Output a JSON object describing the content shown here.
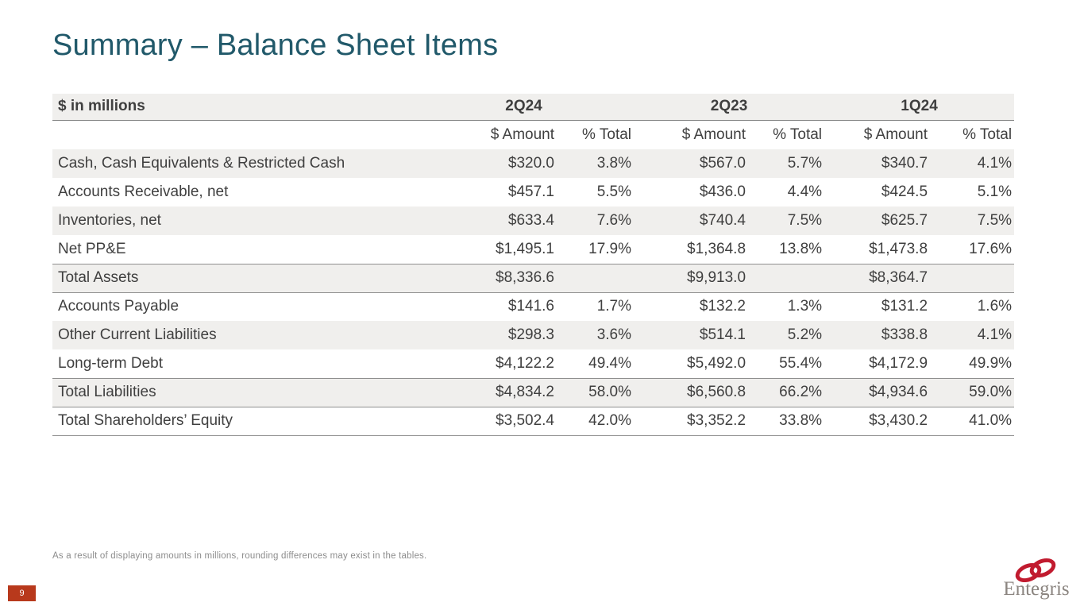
{
  "slide": {
    "title": "Summary – Balance Sheet Items",
    "footnote": "As a result of displaying amounts in millions, rounding differences may exist in the tables.",
    "page_number": "9",
    "logo_text": "Entegris"
  },
  "colors": {
    "title_teal": "#21596a",
    "row_band": "#f0efed",
    "rule_gray": "#8f8f8f",
    "page_badge_red": "#b8391c",
    "logo_red": "#c11b2f",
    "logo_gray": "#8b8580",
    "body_text": "#3f3f3f",
    "footnote_gray": "#8c8c8c"
  },
  "table": {
    "unit_label": "$ in millions",
    "quarters": [
      "2Q24",
      "2Q23",
      "1Q24"
    ],
    "subheaders": [
      "$ Amount",
      "% Total"
    ],
    "rows": [
      {
        "label": "Cash, Cash Equivalents & Restricted Cash",
        "values": [
          "$320.0",
          "3.8%",
          "$567.0",
          "5.7%",
          "$340.7",
          "4.1%"
        ],
        "shaded": true,
        "border_bottom": false
      },
      {
        "label": "Accounts Receivable, net",
        "values": [
          "$457.1",
          "5.5%",
          "$436.0",
          "4.4%",
          "$424.5",
          "5.1%"
        ],
        "shaded": false,
        "border_bottom": false
      },
      {
        "label": "Inventories, net",
        "values": [
          "$633.4",
          "7.6%",
          "$740.4",
          "7.5%",
          "$625.7",
          "7.5%"
        ],
        "shaded": true,
        "border_bottom": false
      },
      {
        "label": "Net PP&E",
        "values": [
          "$1,495.1",
          "17.9%",
          "$1,364.8",
          "13.8%",
          "$1,473.8",
          "17.6%"
        ],
        "shaded": false,
        "border_bottom": true
      },
      {
        "label": "Total Assets",
        "values": [
          "$8,336.6",
          "",
          "$9,913.0",
          "",
          "$8,364.7",
          ""
        ],
        "shaded": true,
        "border_bottom": true
      },
      {
        "label": "Accounts Payable",
        "values": [
          "$141.6",
          "1.7%",
          "$132.2",
          "1.3%",
          "$131.2",
          "1.6%"
        ],
        "shaded": false,
        "border_bottom": false
      },
      {
        "label": "Other Current Liabilities",
        "values": [
          "$298.3",
          "3.6%",
          "$514.1",
          "5.2%",
          "$338.8",
          "4.1%"
        ],
        "shaded": true,
        "border_bottom": false
      },
      {
        "label": "Long-term Debt",
        "values": [
          "$4,122.2",
          "49.4%",
          "$5,492.0",
          "55.4%",
          "$4,172.9",
          "49.9%"
        ],
        "shaded": false,
        "border_bottom": true
      },
      {
        "label": "Total Liabilities",
        "values": [
          "$4,834.2",
          "58.0%",
          "$6,560.8",
          "66.2%",
          "$4,934.6",
          "59.0%"
        ],
        "shaded": true,
        "border_bottom": true
      },
      {
        "label": "Total Shareholders’ Equity",
        "values": [
          "$3,502.4",
          "42.0%",
          "$3,352.2",
          "33.8%",
          "$3,430.2",
          "41.0%"
        ],
        "shaded": false,
        "border_bottom": true
      }
    ]
  }
}
